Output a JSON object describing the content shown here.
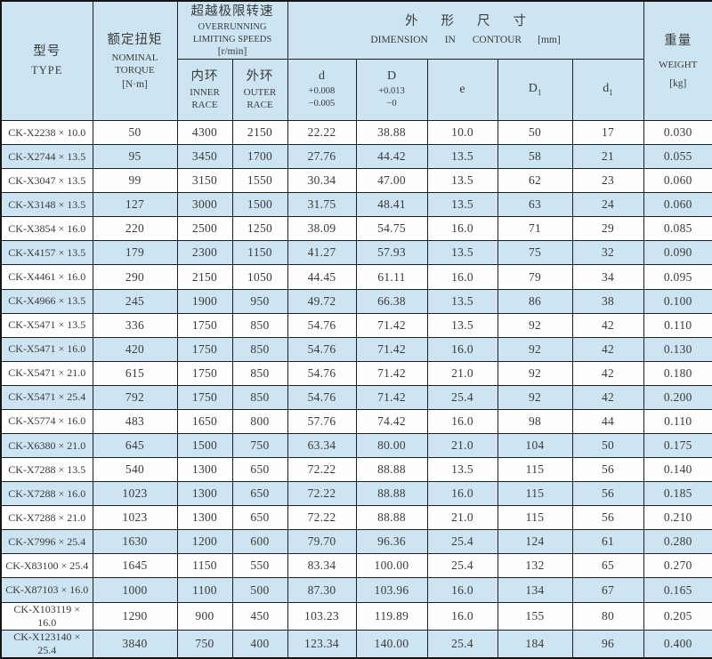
{
  "table": {
    "colors": {
      "band_blue": "#cde5f2",
      "band_white": "#fdfefe",
      "border": "#1f1f1f",
      "text": "#3a3a3a"
    },
    "headers": {
      "type": {
        "zh": "型号",
        "en": "TYPE"
      },
      "torque": {
        "zh": "额定扭矩",
        "en": "NOMINAL TORQUE",
        "unit": "[N·m]"
      },
      "speeds": {
        "zh": "超越极限转速",
        "en": "OVERRUNNING LIMITING SPEEDS",
        "unit": "[r/min]"
      },
      "inner_race": {
        "zh": "内环",
        "en": "INNER RACE"
      },
      "outer_race": {
        "zh": "外环",
        "en": "OUTER RACE"
      },
      "dimension": {
        "zh": "外形尺寸",
        "en": "DIMENSION IN CONTOUR",
        "unit": "[mm]"
      },
      "d": {
        "symbol": "d",
        "tol_plus": "+0.008",
        "tol_minus": "−0.005"
      },
      "D": {
        "symbol": "D",
        "tol_plus": "+0.013",
        "tol_minus": "−0"
      },
      "e": {
        "symbol": "e"
      },
      "D1": {
        "base": "D",
        "sub": "1"
      },
      "d1": {
        "base": "d",
        "sub": "1"
      },
      "weight": {
        "zh": "重量",
        "en": "WEIGHT",
        "unit": "[kg]"
      }
    },
    "column_keys": [
      "type",
      "torque",
      "inner_race",
      "outer_race",
      "d",
      "D",
      "e",
      "D1",
      "d1",
      "weight"
    ],
    "rows": [
      [
        "CK-X2238 × 10.0",
        "50",
        "4300",
        "2150",
        "22.22",
        "38.88",
        "10.0",
        "50",
        "17",
        "0.030"
      ],
      [
        "CK-X2744 × 13.5",
        "95",
        "3450",
        "1700",
        "27.76",
        "44.42",
        "13.5",
        "58",
        "21",
        "0.055"
      ],
      [
        "CK-X3047 × 13.5",
        "99",
        "3150",
        "1550",
        "30.34",
        "47.00",
        "13.5",
        "62",
        "23",
        "0.060"
      ],
      [
        "CK-X3148 × 13.5",
        "127",
        "3000",
        "1500",
        "31.75",
        "48.41",
        "13.5",
        "63",
        "24",
        "0.060"
      ],
      [
        "CK-X3854 × 16.0",
        "220",
        "2500",
        "1250",
        "38.09",
        "54.75",
        "16.0",
        "71",
        "29",
        "0.085"
      ],
      [
        "CK-X4157 × 13.5",
        "179",
        "2300",
        "1150",
        "41.27",
        "57.93",
        "13.5",
        "75",
        "32",
        "0.090"
      ],
      [
        "CK-X4461 × 16.0",
        "290",
        "2150",
        "1050",
        "44.45",
        "61.11",
        "16.0",
        "79",
        "34",
        "0.095"
      ],
      [
        "CK-X4966 × 13.5",
        "245",
        "1900",
        "950",
        "49.72",
        "66.38",
        "13.5",
        "86",
        "38",
        "0.100"
      ],
      [
        "CK-X5471 × 13.5",
        "336",
        "1750",
        "850",
        "54.76",
        "71.42",
        "13.5",
        "92",
        "42",
        "0.110"
      ],
      [
        "CK-X5471 × 16.0",
        "420",
        "1750",
        "850",
        "54.76",
        "71.42",
        "16.0",
        "92",
        "42",
        "0.130"
      ],
      [
        "CK-X5471 × 21.0",
        "615",
        "1750",
        "850",
        "54.76",
        "71.42",
        "21.0",
        "92",
        "42",
        "0.180"
      ],
      [
        "CK-X5471 × 25.4",
        "792",
        "1750",
        "850",
        "54.76",
        "71.42",
        "25.4",
        "92",
        "42",
        "0.200"
      ],
      [
        "CK-X5774 × 16.0",
        "483",
        "1650",
        "800",
        "57.76",
        "74.42",
        "16.0",
        "98",
        "44",
        "0.110"
      ],
      [
        "CK-X6380 × 21.0",
        "645",
        "1500",
        "750",
        "63.34",
        "80.00",
        "21.0",
        "104",
        "50",
        "0.175"
      ],
      [
        "CK-X7288 × 13.5",
        "540",
        "1300",
        "650",
        "72.22",
        "88.88",
        "13.5",
        "115",
        "56",
        "0.140"
      ],
      [
        "CK-X7288 × 16.0",
        "1023",
        "1300",
        "650",
        "72.22",
        "88.88",
        "16.0",
        "115",
        "56",
        "0.185"
      ],
      [
        "CK-X7288 × 21.0",
        "1023",
        "1300",
        "650",
        "72.22",
        "88.88",
        "21.0",
        "115",
        "56",
        "0.210"
      ],
      [
        "CK-X7996 × 25.4",
        "1630",
        "1200",
        "600",
        "79.70",
        "96.36",
        "25.4",
        "124",
        "61",
        "0.280"
      ],
      [
        "CK-X83100 × 25.4",
        "1645",
        "1150",
        "550",
        "83.34",
        "100.00",
        "25.4",
        "132",
        "65",
        "0.270"
      ],
      [
        "CK-X87103 × 16.0",
        "1000",
        "1100",
        "500",
        "87.30",
        "103.96",
        "16.0",
        "134",
        "67",
        "0.165"
      ],
      [
        "CK-X103119 × 16.0",
        "1290",
        "900",
        "450",
        "103.23",
        "119.89",
        "16.0",
        "155",
        "80",
        "0.205"
      ],
      [
        "CK-X123140 × 25.4",
        "3840",
        "750",
        "400",
        "123.34",
        "140.00",
        "25.4",
        "184",
        "96",
        "0.400"
      ]
    ]
  }
}
